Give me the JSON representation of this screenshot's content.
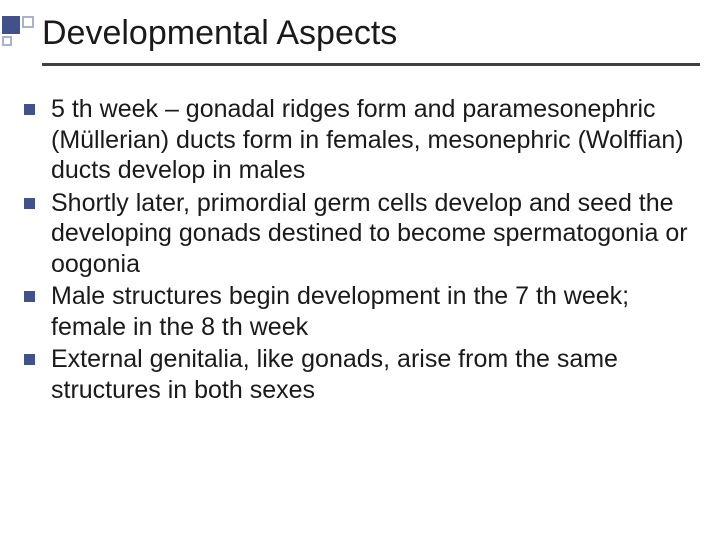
{
  "slide": {
    "title": "Developmental Aspects",
    "bullets": [
      "5 th week – gonadal ridges form and paramesonephric (Müllerian) ducts form in females, mesonephric (Wolffian) ducts develop in males",
      "Shortly later, primordial germ cells develop and seed the developing gonads destined to become spermatogonia or oogonia",
      "Male structures begin development in the 7 th week; female in the 8 th week",
      "External genitalia, like gonads, arise from the same structures in both sexes"
    ],
    "colors": {
      "accent": "#41528b",
      "accent_light": "#a9b2cd",
      "text": "#1a1a1a",
      "title_underline": "#3f3f3f",
      "background": "#ffffff"
    },
    "typography": {
      "title_fontsize": 34,
      "body_fontsize": 25,
      "font_family": "Arial"
    }
  }
}
